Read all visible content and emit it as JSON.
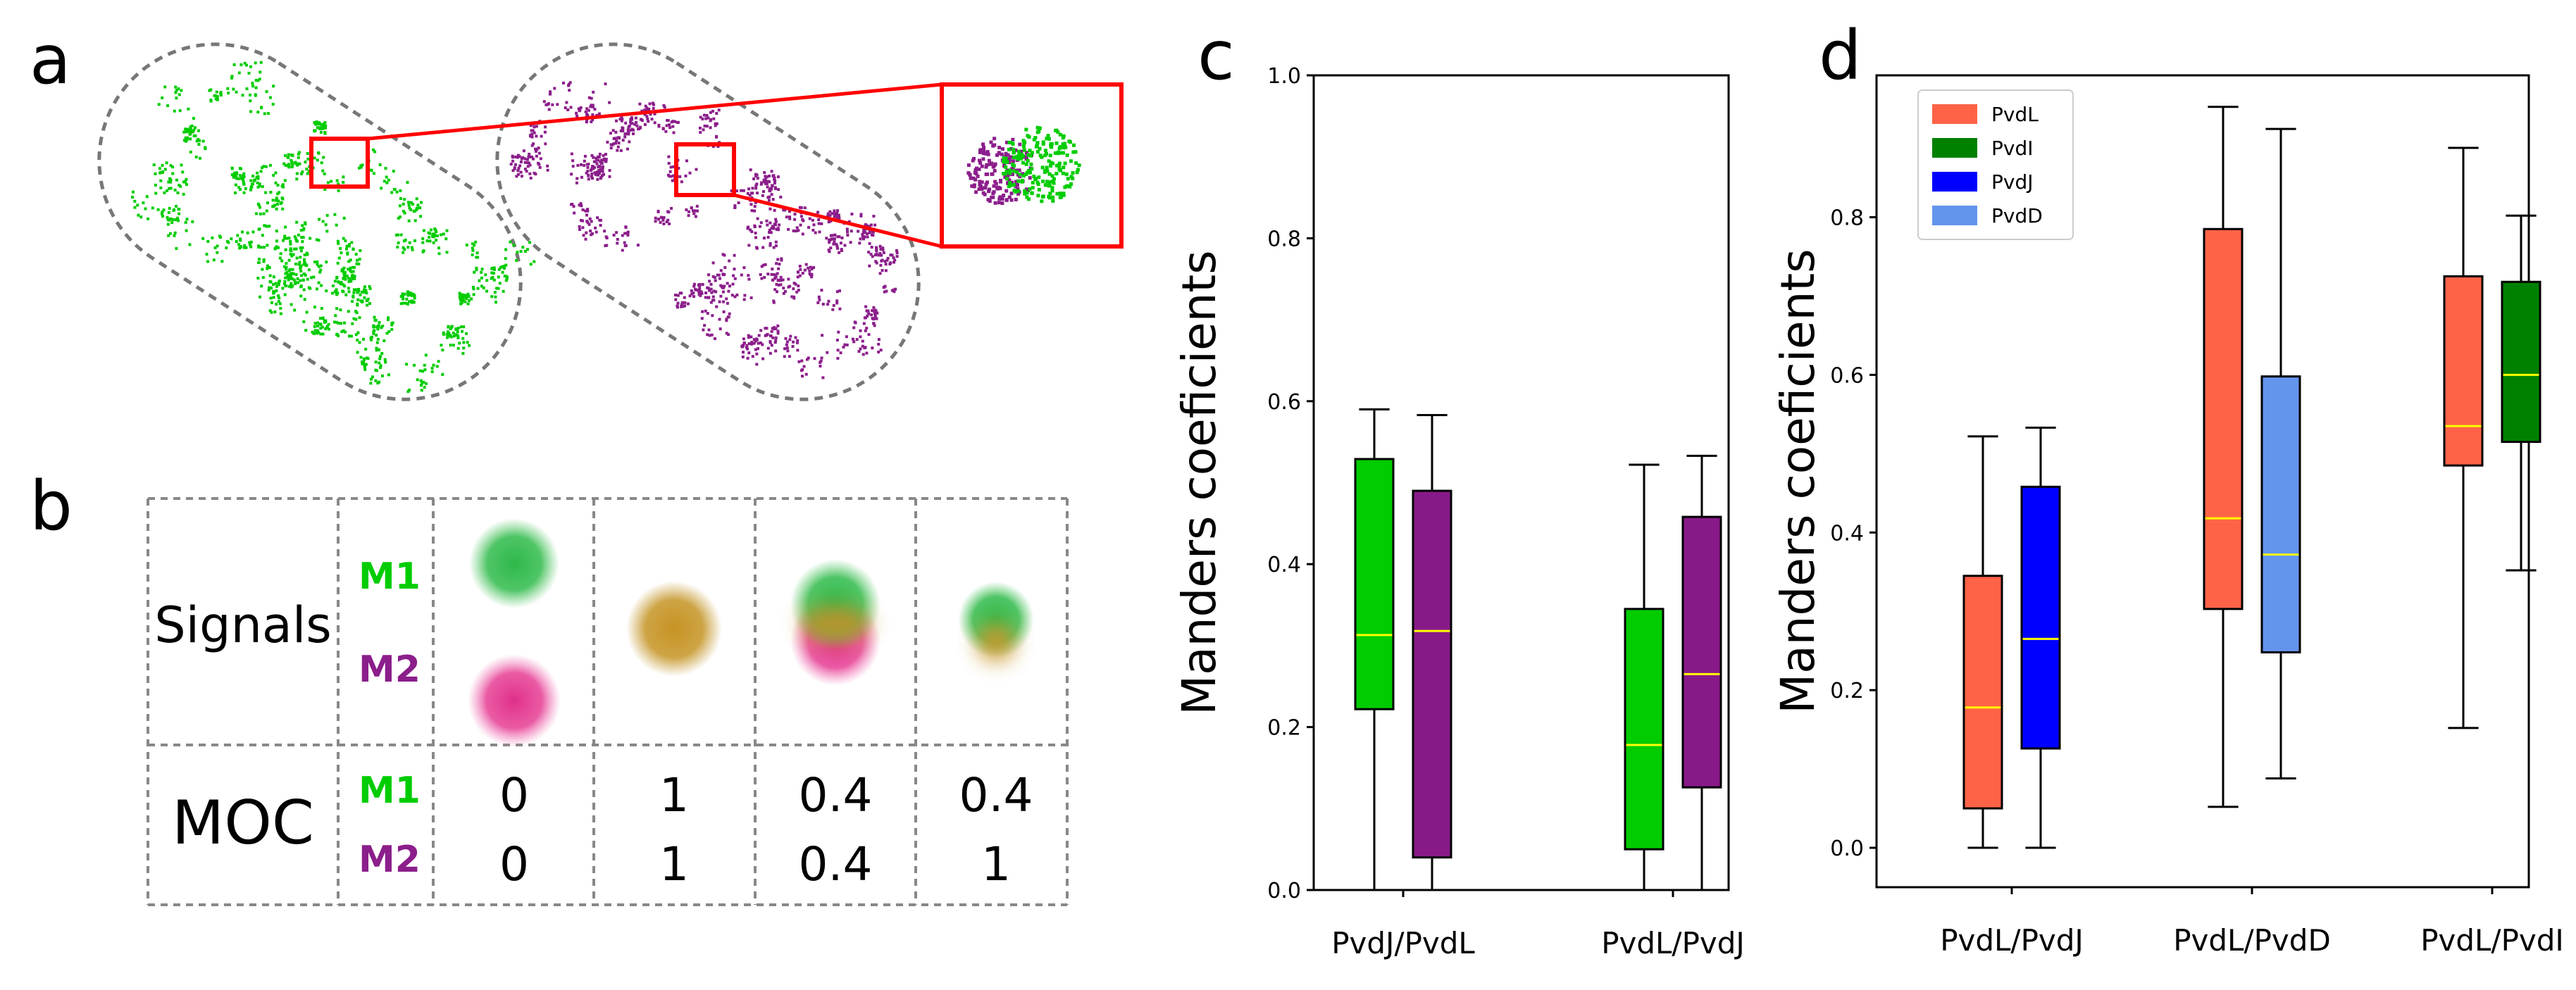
{
  "panel_labels": {
    "a": "a",
    "b": "b",
    "c": "c",
    "d": "d"
  },
  "colors": {
    "green": "#00cc00",
    "purple": "#8b1e8b",
    "red": "#ff0000",
    "median": "#ffff00"
  },
  "table": {
    "row_signals": "Signals",
    "row_moc": "MOC",
    "m1": "M1",
    "m2": "M2",
    "moc_m1": [
      "0",
      "1",
      "0.4",
      "0.4"
    ],
    "moc_m2": [
      "0",
      "1",
      "0.4",
      "1"
    ]
  },
  "chart_data": [
    {
      "type": "box",
      "ylabel": "Manders coeficients",
      "ylim": [
        0,
        1.0
      ],
      "yticks": [
        "0.0",
        "0.2",
        "0.4",
        "0.6",
        "0.8",
        "1.0"
      ],
      "categories": [
        "PvdJ/PvdL",
        "PvdL/PvdJ"
      ],
      "boxes": [
        {
          "group": 0,
          "color": "#00cc00",
          "whislo": 0.0,
          "q1": 0.222,
          "med": 0.313,
          "q3": 0.529,
          "whishi": 0.59
        },
        {
          "group": 0,
          "color": "#881a88",
          "whislo": 0.0,
          "q1": 0.04,
          "med": 0.318,
          "q3": 0.49,
          "whishi": 0.583
        },
        {
          "group": 1,
          "color": "#00cc00",
          "whislo": 0.0,
          "q1": 0.05,
          "med": 0.178,
          "q3": 0.345,
          "whishi": 0.522
        },
        {
          "group": 1,
          "color": "#881a88",
          "whislo": 0.0,
          "q1": 0.126,
          "med": 0.265,
          "q3": 0.458,
          "whishi": 0.533
        }
      ]
    },
    {
      "type": "box",
      "ylabel": "Manders coeficients",
      "ylim": [
        -0.05,
        0.98
      ],
      "yticks": [
        "0.0",
        "0.2",
        "0.4",
        "0.6",
        "0.8"
      ],
      "categories": [
        "PvdL/PvdJ",
        "PvdL/PvdD",
        "PvdL/PvdI"
      ],
      "legend": [
        {
          "name": "PvdL",
          "color": "#ff6347"
        },
        {
          "name": "PvdI",
          "color": "#008000"
        },
        {
          "name": "PvdJ",
          "color": "#0000ff"
        },
        {
          "name": "PvdD",
          "color": "#6495ed"
        }
      ],
      "legend_position": "top-left",
      "boxes": [
        {
          "group": 0,
          "color": "#ff6347",
          "whislo": 0.0,
          "q1": 0.05,
          "med": 0.178,
          "q3": 0.345,
          "whishi": 0.522
        },
        {
          "group": 0,
          "color": "#0000ff",
          "whislo": 0.0,
          "q1": 0.126,
          "med": 0.265,
          "q3": 0.458,
          "whishi": 0.533
        },
        {
          "group": 1,
          "color": "#ff6347",
          "whislo": 0.052,
          "q1": 0.303,
          "med": 0.418,
          "q3": 0.785,
          "whishi": 0.94
        },
        {
          "group": 1,
          "color": "#6495ed",
          "whislo": 0.088,
          "q1": 0.248,
          "med": 0.372,
          "q3": 0.598,
          "whishi": 0.912
        },
        {
          "group": 2,
          "color": "#ff6347",
          "whislo": 0.152,
          "q1": 0.485,
          "med": 0.535,
          "q3": 0.725,
          "whishi": 0.888
        },
        {
          "group": 2,
          "color": "#008000",
          "whislo": 0.352,
          "q1": 0.515,
          "med": 0.6,
          "q3": 0.718,
          "whishi": 0.802
        }
      ]
    }
  ]
}
